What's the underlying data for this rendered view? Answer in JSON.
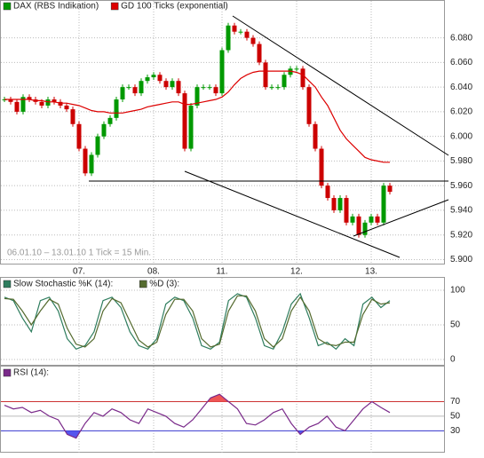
{
  "chart_data": [
    {
      "type": "candlestick",
      "annotation": "06.01.10 – 13.01.10   1 Tick = 15 Min.",
      "xticks": [
        {
          "value": 12,
          "label": "07."
        },
        {
          "value": 24,
          "label": "08."
        },
        {
          "value": 35,
          "label": "11."
        },
        {
          "value": 47,
          "label": "12."
        },
        {
          "value": 59,
          "label": "13."
        }
      ],
      "ylim": [
        5896,
        6110
      ],
      "yticks": [
        {
          "value": 5900,
          "label": "5.900"
        },
        {
          "value": 5920,
          "label": "5.920"
        },
        {
          "value": 5940,
          "label": "5.940"
        },
        {
          "value": 5960,
          "label": "5.960"
        },
        {
          "value": 5980,
          "label": "5.980"
        },
        {
          "value": 6000,
          "label": "6.000"
        },
        {
          "value": 6020,
          "label": "6.020"
        },
        {
          "value": 6040,
          "label": "6.040"
        },
        {
          "value": 6060,
          "label": "6.060"
        },
        {
          "value": 6080,
          "label": "6.080"
        }
      ],
      "grid": true,
      "up_color": "#009900",
      "down_color": "#cc0000",
      "series": [
        {
          "name": "DAX (RBS Indikation)",
          "color": "#009900",
          "values": [
            6030,
            6028,
            6020,
            6032,
            6030,
            6028,
            6025,
            6030,
            6028,
            6025,
            6022,
            6010,
            5990,
            5970,
            5985,
            6000,
            6010,
            6015,
            6030,
            6040,
            6040,
            6035,
            6045,
            6048,
            6050,
            6045,
            6040,
            6045,
            6035,
            5990,
            6025,
            6040,
            6040,
            6040,
            6035,
            6070,
            6090,
            6085,
            6085,
            6080,
            6075,
            6060,
            6040,
            6040,
            6040,
            6050,
            6055,
            6055,
            6040,
            6010,
            5990,
            5960,
            5950,
            5940,
            5950,
            5930,
            5935,
            5920,
            5930,
            5935,
            5930,
            5960,
            5955
          ]
        },
        {
          "name": "GD 100 Ticks (exponential)",
          "color": "#dd0000",
          "values": [
            6030,
            6030,
            6030,
            6030,
            6030,
            6029,
            6029,
            6028,
            6028,
            6027,
            6027,
            6026,
            6025,
            6023,
            6021,
            6020,
            6020,
            6019,
            6019,
            6019,
            6020,
            6021,
            6022,
            6024,
            6025,
            6026,
            6027,
            6028,
            6028,
            6026,
            6026,
            6027,
            6028,
            6029,
            6030,
            6032,
            6036,
            6042,
            6047,
            6050,
            6052,
            6053,
            6053,
            6053,
            6053,
            6053,
            6053,
            6052,
            6050,
            6045,
            6040,
            6032,
            6025,
            6015,
            6005,
            5998,
            5993,
            5988,
            5983,
            5981,
            5980,
            5979,
            5979
          ]
        }
      ]
    },
    {
      "type": "line",
      "ylim": [
        -9,
        118
      ],
      "yticks": [
        0,
        50,
        100
      ],
      "grid": true,
      "series": [
        {
          "name": "Slow Stochastic %K (14):",
          "color": "#2e7d5e",
          "values": [
            90,
            85,
            60,
            40,
            85,
            90,
            70,
            30,
            15,
            20,
            40,
            85,
            90,
            75,
            40,
            20,
            15,
            30,
            80,
            90,
            85,
            60,
            20,
            15,
            25,
            85,
            95,
            90,
            60,
            20,
            15,
            40,
            80,
            95,
            60,
            20,
            25,
            15,
            30,
            20,
            80,
            90,
            75,
            85
          ]
        },
        {
          "name": "%D (3):",
          "color": "#556b2f",
          "values": [
            88,
            87,
            70,
            50,
            70,
            87,
            80,
            45,
            22,
            18,
            30,
            70,
            88,
            82,
            55,
            28,
            18,
            25,
            65,
            87,
            87,
            70,
            30,
            18,
            22,
            70,
            92,
            92,
            70,
            30,
            18,
            30,
            70,
            90,
            70,
            30,
            22,
            20,
            25,
            25,
            65,
            87,
            80,
            82
          ]
        }
      ]
    },
    {
      "type": "line",
      "ylim": [
        0,
        118
      ],
      "yticks": [
        30,
        50,
        70
      ],
      "grid": true,
      "tick_colors": [
        "#3333cc",
        "#bbbbbb",
        "#cc3333"
      ],
      "series": [
        {
          "name": "RSI (14):",
          "color": "#7a2a8a",
          "values": [
            65,
            60,
            62,
            55,
            58,
            50,
            45,
            25,
            20,
            40,
            55,
            50,
            60,
            55,
            45,
            40,
            60,
            55,
            50,
            40,
            35,
            45,
            60,
            75,
            80,
            70,
            60,
            40,
            38,
            45,
            55,
            60,
            40,
            25,
            35,
            40,
            50,
            35,
            30,
            45,
            60,
            70,
            62,
            55
          ]
        }
      ]
    }
  ]
}
